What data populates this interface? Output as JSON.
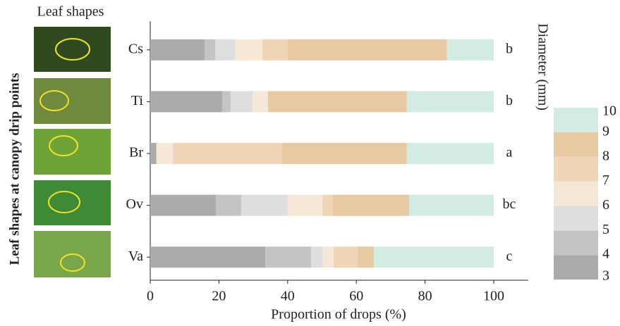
{
  "chart_data": {
    "type": "stacked-bar-horizontal",
    "panel_title": "Leaf shapes",
    "side_label": "Leaf shapes at canopy drip points",
    "xlabel": "Proportion of drops (%)",
    "categories": [
      "Cs",
      "Ti",
      "Br",
      "Ov",
      "Va"
    ],
    "annotations": [
      "b",
      "b",
      "a",
      "bc",
      "c"
    ],
    "series": [
      {
        "color": "#ababab",
        "values": [
          15.8,
          21,
          1.8,
          19.1,
          33.5
        ]
      },
      {
        "color": "#c4c4c4",
        "values": [
          3.1,
          2.4,
          0,
          7.4,
          13.3
        ]
      },
      {
        "color": "#dedede",
        "values": [
          5.9,
          6.4,
          0,
          13.5,
          3.3
        ]
      },
      {
        "color": "#f6e8d6",
        "values": [
          7.8,
          4.5,
          4.8,
          10.1,
          3.3
        ]
      },
      {
        "color": "#f0d6b6",
        "values": [
          7.4,
          0,
          31.8,
          3.1,
          7
        ]
      },
      {
        "color": "#e9c9a2",
        "values": [
          46.4,
          40.4,
          36.3,
          22.2,
          4.7
        ]
      },
      {
        "color": "#d2ece2",
        "values": [
          13.6,
          25.3,
          25.3,
          24.6,
          34.9
        ]
      }
    ],
    "xlim": [
      0,
      110
    ],
    "xticks": [
      0,
      20,
      40,
      60,
      80,
      100
    ],
    "legend": {
      "title": "Diameter (mm)",
      "labels": [
        "3",
        "4",
        "5",
        "6",
        "7",
        "8",
        "9",
        "10"
      ]
    }
  }
}
